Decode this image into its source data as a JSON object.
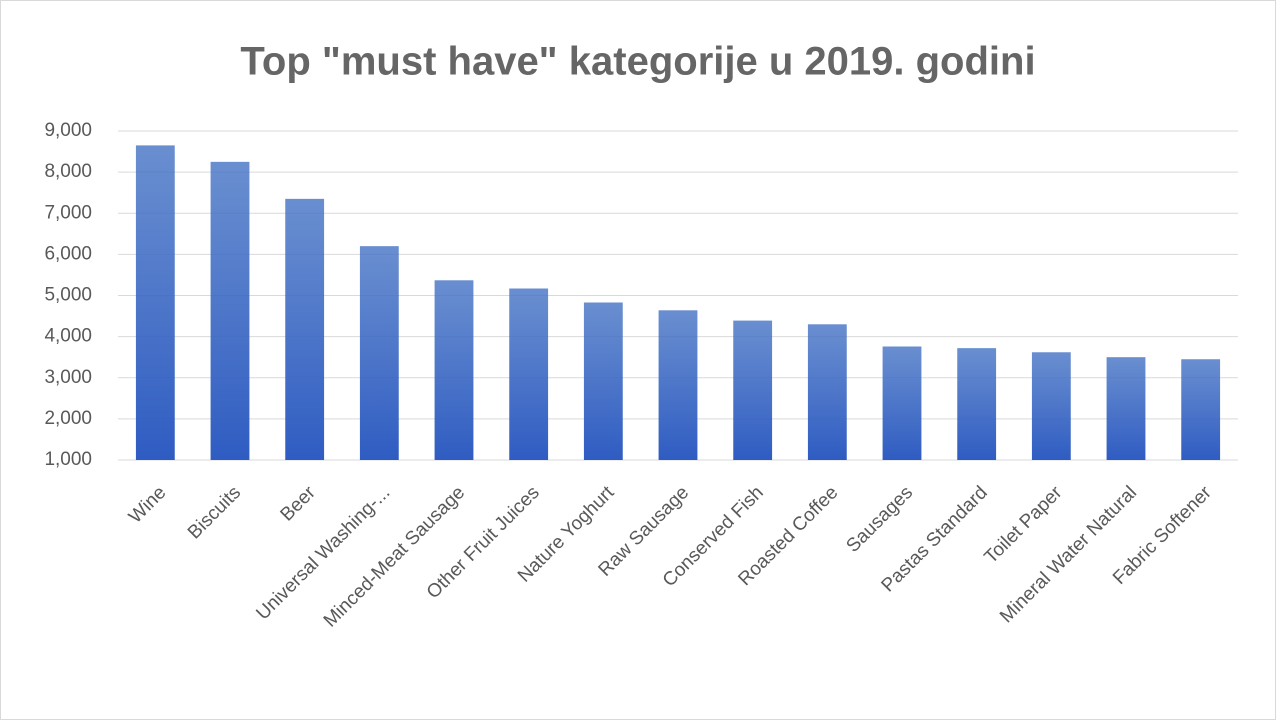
{
  "chart_data": {
    "type": "bar",
    "title": "Top \"must have\" kategorije u 2019. godini",
    "categories": [
      "Wine",
      "Biscuits",
      "Beer",
      "Universal Washing-...",
      "Minced-Meat Sausage",
      "Other Fruit Juices",
      "Nature Yoghurt",
      "Raw Sausage",
      "Conserved Fish",
      "Roasted Coffee",
      "Sausages",
      "Pastas Standard",
      "Toilet Paper",
      "Mineral Water Natural",
      "Fabric Softener"
    ],
    "values": [
      8650,
      8250,
      7350,
      6200,
      5370,
      5170,
      4830,
      4640,
      4390,
      4300,
      3760,
      3720,
      3620,
      3500,
      3450
    ],
    "color": "#4472c4",
    "ylim": [
      1000,
      9000
    ],
    "yticks": [
      {
        "value": 1000,
        "label": "1,000"
      },
      {
        "value": 2000,
        "label": "2,000"
      },
      {
        "value": 3000,
        "label": "3,000"
      },
      {
        "value": 4000,
        "label": "4,000"
      },
      {
        "value": 5000,
        "label": "5,000"
      },
      {
        "value": 6000,
        "label": "6,000"
      },
      {
        "value": 7000,
        "label": "7,000"
      },
      {
        "value": 8000,
        "label": "8,000"
      },
      {
        "value": 9000,
        "label": "9,000"
      }
    ],
    "grid": true
  }
}
